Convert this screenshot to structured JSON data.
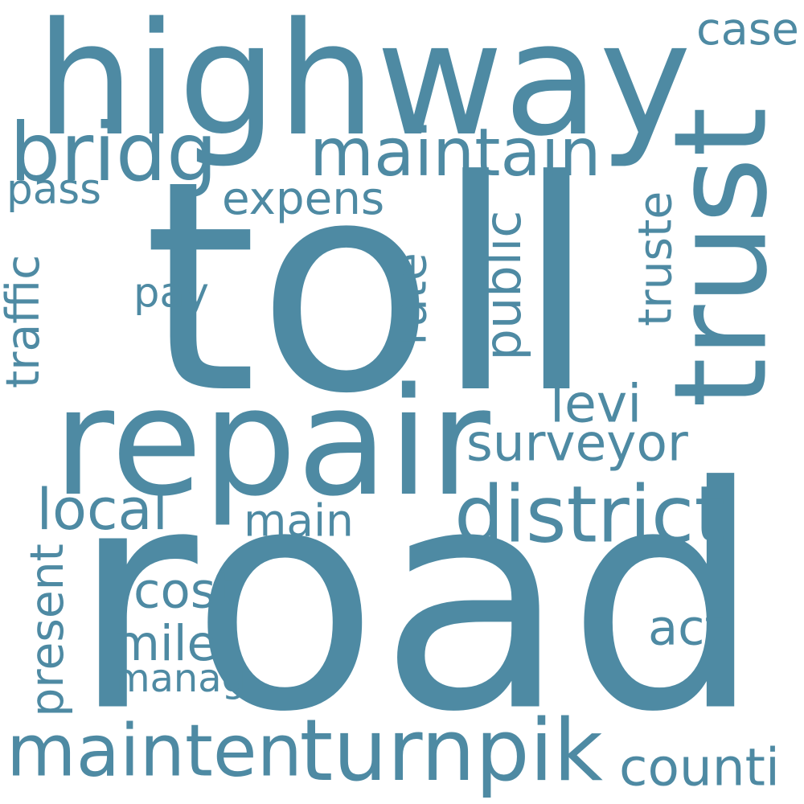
{
  "colors": {
    "word": "#4E8AA3",
    "background": "#FFFFFF"
  },
  "words": {
    "road": "road",
    "toll": "toll",
    "highway": "highway",
    "trust": "trust",
    "repair": "repair",
    "mainten": "mainten",
    "turnpik": "turnpik",
    "district": "district",
    "maintain": "maintain",
    "bridg": "bridg",
    "expens": "expens",
    "case": "case",
    "pass": "pass",
    "traffic": "traffic",
    "pay": "pay",
    "rate": "rate",
    "public": "public",
    "truste": "truste",
    "levi": "levi",
    "surveyor": "surveyor",
    "local": "local",
    "main": "main",
    "present": "present",
    "cost": "cost",
    "mile": "mile",
    "act": "act",
    "manag": "manag",
    "counti": "counti"
  }
}
